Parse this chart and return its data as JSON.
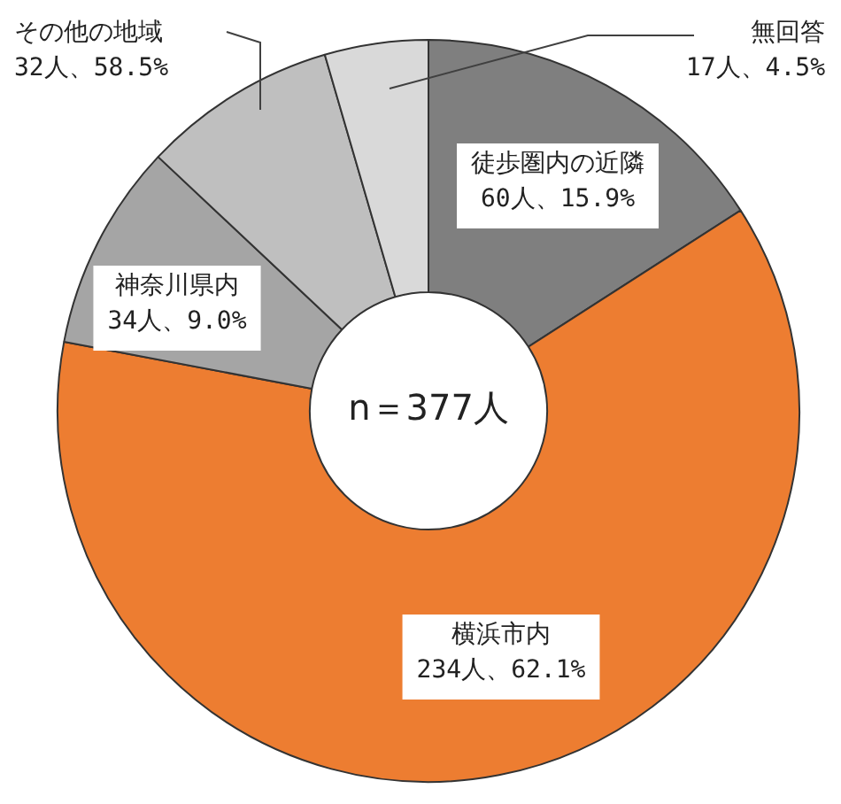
{
  "chart_data": {
    "type": "donut",
    "categories": [
      "徒歩圏内の近隣",
      "横浜市内",
      "神奈川県内",
      "その他の地域",
      "無回答"
    ],
    "values": [
      60,
      234,
      34,
      32,
      17
    ],
    "colors": [
      "#7f7f7f",
      "#ed7d31",
      "#a5a5a5",
      "#bfbfbf",
      "#d9d9d9"
    ],
    "value_labels": [
      "60人、15.9%",
      "234人、62.1%",
      "34人、9.0%",
      "32人、58.5%",
      "17人、4.5%"
    ],
    "annotations": [
      "n＝377人"
    ]
  }
}
